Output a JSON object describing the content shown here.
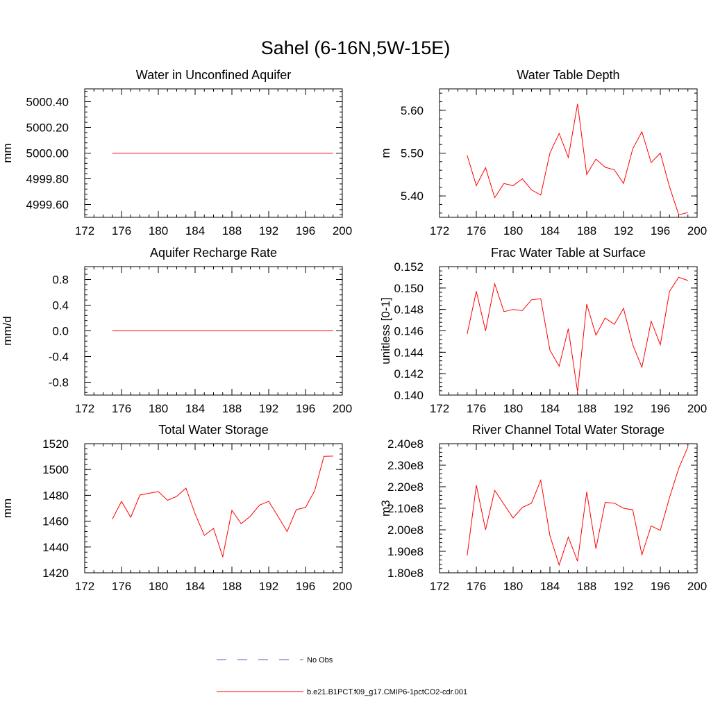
{
  "title": "Sahel (6-16N,5W-15E)",
  "chart_data": [
    {
      "type": "line",
      "title": "Water in Unconfined Aquifer",
      "ylabel": "mm",
      "xlim": [
        172,
        200
      ],
      "xticks": [
        "172",
        "176",
        "180",
        "184",
        "188",
        "192",
        "196",
        "200"
      ],
      "ylim": [
        4999.5,
        5000.5
      ],
      "yticks": [
        "4999.60",
        "4999.80",
        "5000.00",
        "5000.20",
        "5000.40"
      ],
      "ytick_values": [
        4999.6,
        4999.8,
        5000.0,
        5000.2,
        5000.4
      ],
      "x": [
        175,
        176,
        177,
        178,
        179,
        180,
        181,
        182,
        183,
        184,
        185,
        186,
        187,
        188,
        189,
        190,
        191,
        192,
        193,
        194,
        195,
        196,
        197,
        198,
        199
      ],
      "series": [
        {
          "name": "b.e21.B1PCT.f09_g17.CMIP6-1pctCO2-cdr.001",
          "color": "#ff0000",
          "values": [
            5000.0,
            5000.0,
            5000.0,
            5000.0,
            5000.0,
            5000.0,
            5000.0,
            5000.0,
            5000.0,
            5000.0,
            5000.0,
            5000.0,
            5000.0,
            5000.0,
            5000.0,
            5000.0,
            5000.0,
            5000.0,
            5000.0,
            5000.0,
            5000.0,
            5000.0,
            5000.0,
            5000.0,
            5000.0
          ]
        }
      ]
    },
    {
      "type": "line",
      "title": "Water Table Depth",
      "ylabel": "m",
      "xlim": [
        172,
        200
      ],
      "xticks": [
        "172",
        "176",
        "180",
        "184",
        "188",
        "192",
        "196",
        "200"
      ],
      "ylim": [
        5.35,
        5.65
      ],
      "yticks": [
        "5.40",
        "5.50",
        "5.60"
      ],
      "ytick_values": [
        5.4,
        5.5,
        5.6
      ],
      "x": [
        175,
        176,
        177,
        178,
        179,
        180,
        181,
        182,
        183,
        184,
        185,
        186,
        187,
        188,
        189,
        190,
        191,
        192,
        193,
        194,
        195,
        196,
        197,
        198,
        199
      ],
      "series": [
        {
          "name": "b.e21.B1PCT.f09_g17.CMIP6-1pctCO2-cdr.001",
          "color": "#ff0000",
          "values": [
            5.495,
            5.424,
            5.466,
            5.396,
            5.429,
            5.424,
            5.44,
            5.414,
            5.402,
            5.5,
            5.546,
            5.49,
            5.615,
            5.45,
            5.486,
            5.467,
            5.461,
            5.429,
            5.51,
            5.55,
            5.478,
            5.5,
            5.421,
            5.356,
            5.361
          ]
        }
      ]
    },
    {
      "type": "line",
      "title": "Aquifer Recharge Rate",
      "ylabel": "mm/d",
      "xlim": [
        172,
        200
      ],
      "xticks": [
        "172",
        "176",
        "180",
        "184",
        "188",
        "192",
        "196",
        "200"
      ],
      "ylim": [
        -1.0,
        1.0
      ],
      "yticks": [
        "-0.8",
        "-0.4",
        "0.0",
        "0.4",
        "0.8"
      ],
      "ytick_values": [
        -0.8,
        -0.4,
        0.0,
        0.4,
        0.8
      ],
      "x": [
        175,
        176,
        177,
        178,
        179,
        180,
        181,
        182,
        183,
        184,
        185,
        186,
        187,
        188,
        189,
        190,
        191,
        192,
        193,
        194,
        195,
        196,
        197,
        198,
        199
      ],
      "series": [
        {
          "name": "b.e21.B1PCT.f09_g17.CMIP6-1pctCO2-cdr.001",
          "color": "#ff0000",
          "values": [
            0,
            0,
            0,
            0,
            0,
            0,
            0,
            0,
            0,
            0,
            0,
            0,
            0,
            0,
            0,
            0,
            0,
            0,
            0,
            0,
            0,
            0,
            0,
            0,
            0
          ]
        }
      ]
    },
    {
      "type": "line",
      "title": "Frac Water Table at Surface",
      "ylabel": "unitless [0-1]",
      "xlim": [
        172,
        200
      ],
      "xticks": [
        "172",
        "176",
        "180",
        "184",
        "188",
        "192",
        "196",
        "200"
      ],
      "ylim": [
        0.14,
        0.152
      ],
      "yticks": [
        "0.140",
        "0.142",
        "0.144",
        "0.146",
        "0.148",
        "0.150",
        "0.152"
      ],
      "ytick_values": [
        0.14,
        0.142,
        0.144,
        0.146,
        0.148,
        0.15,
        0.152
      ],
      "x": [
        175,
        176,
        177,
        178,
        179,
        180,
        181,
        182,
        183,
        184,
        185,
        186,
        187,
        188,
        189,
        190,
        191,
        192,
        193,
        194,
        195,
        196,
        197,
        198,
        199
      ],
      "series": [
        {
          "name": "b.e21.B1PCT.f09_g17.CMIP6-1pctCO2-cdr.001",
          "color": "#ff0000",
          "values": [
            0.1457,
            0.1497,
            0.146,
            0.1504,
            0.1478,
            0.148,
            0.1479,
            0.1489,
            0.149,
            0.1442,
            0.1427,
            0.1462,
            0.1403,
            0.1485,
            0.1456,
            0.1472,
            0.1466,
            0.1481,
            0.1447,
            0.1426,
            0.1469,
            0.1447,
            0.1497,
            0.151,
            0.1507
          ]
        }
      ]
    },
    {
      "type": "line",
      "title": "Total Water Storage",
      "ylabel": "mm",
      "xlim": [
        172,
        200
      ],
      "xticks": [
        "172",
        "176",
        "180",
        "184",
        "188",
        "192",
        "196",
        "200"
      ],
      "ylim": [
        1420,
        1520
      ],
      "yticks": [
        "1420",
        "1440",
        "1460",
        "1480",
        "1500",
        "1520"
      ],
      "ytick_values": [
        1420,
        1440,
        1460,
        1480,
        1500,
        1520
      ],
      "x": [
        175,
        176,
        177,
        178,
        179,
        180,
        181,
        182,
        183,
        184,
        185,
        186,
        187,
        188,
        189,
        190,
        191,
        192,
        193,
        194,
        195,
        196,
        197,
        198,
        199
      ],
      "series": [
        {
          "name": "b.e21.B1PCT.f09_g17.CMIP6-1pctCO2-cdr.001",
          "color": "#ff0000",
          "values": [
            1461.5,
            1475.3,
            1463.0,
            1480.2,
            1481.6,
            1482.9,
            1476.2,
            1479.2,
            1485.6,
            1465.7,
            1449.0,
            1454.4,
            1432.5,
            1468.4,
            1458.0,
            1463.8,
            1472.5,
            1475.3,
            1463.8,
            1452.0,
            1469.0,
            1470.6,
            1483.7,
            1510.2,
            1510.4
          ]
        }
      ]
    },
    {
      "type": "line",
      "title": "River Channel Total Water Storage",
      "ylabel": "m3",
      "xlim": [
        172,
        200
      ],
      "xticks": [
        "172",
        "176",
        "180",
        "184",
        "188",
        "192",
        "196",
        "200"
      ],
      "ylim": [
        180000000,
        240000000
      ],
      "yticks": [
        "1.80e8",
        "1.90e8",
        "2.00e8",
        "2.10e8",
        "2.20e8",
        "2.30e8",
        "2.40e8"
      ],
      "ytick_values": [
        180000000,
        190000000,
        200000000,
        210000000,
        220000000,
        230000000,
        240000000
      ],
      "x": [
        175,
        176,
        177,
        178,
        179,
        180,
        181,
        182,
        183,
        184,
        185,
        186,
        187,
        188,
        189,
        190,
        191,
        192,
        193,
        194,
        195,
        196,
        197,
        198,
        199
      ],
      "series": [
        {
          "name": "b.e21.B1PCT.f09_g17.CMIP6-1pctCO2-cdr.001",
          "color": "#ff0000",
          "values": [
            188000000,
            220700000,
            200000000,
            218300000,
            211800000,
            205500000,
            210400000,
            212400000,
            223000000,
            197300000,
            183600000,
            196600000,
            185400000,
            217600000,
            191200000,
            212700000,
            212400000,
            210000000,
            209300000,
            188400000,
            201800000,
            199700000,
            215000000,
            228500000,
            238500000
          ]
        }
      ]
    }
  ],
  "legend": [
    {
      "label": "No Obs",
      "color": "#5b5bb8",
      "style": "dashed"
    },
    {
      "label": "b.e21.B1PCT.f09_g17.CMIP6-1pctCO2-cdr.001",
      "color": "#ff0000",
      "style": "solid"
    }
  ]
}
